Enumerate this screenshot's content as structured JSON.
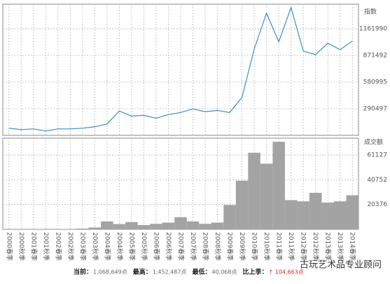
{
  "chart_data": [
    {
      "type": "line",
      "y_label": "指数",
      "categories": [
        "2000春季",
        "2000秋季",
        "2001春季",
        "2001秋季",
        "2002春季",
        "2002秋季",
        "2003春季",
        "2003秋季",
        "2004春季",
        "2004秋季",
        "2005春季",
        "2005秋季",
        "2006春季",
        "2006秋季",
        "2007春季",
        "2007秋季",
        "2008春季",
        "2008秋季",
        "2009春季",
        "2009秋季",
        "2010春季",
        "2010秋季",
        "2011春季",
        "2011秋季",
        "2012春季",
        "2012秋季",
        "2013春季",
        "2013秋季",
        "2014春季"
      ],
      "series": [
        {
          "name": "指数",
          "color": "#3b8ec6",
          "values": [
            77900,
            62300,
            70100,
            46700,
            70100,
            70100,
            77900,
            93500,
            124600,
            264800,
            210300,
            218100,
            186900,
            225900,
            249200,
            288200,
            257000,
            272600,
            249200,
            412800,
            942600,
            1332000,
            1020000,
            1394000,
            919000,
            880000,
            1005000,
            934500,
            1028000
          ]
        }
      ],
      "ylim": [
        0,
        1430000
      ],
      "yticks": [
        {
          "value": 290497,
          "label": "290497"
        },
        {
          "value": 580995,
          "label": "580995"
        },
        {
          "value": 871492,
          "label": "871492"
        },
        {
          "value": 1161990,
          "label": "1161990"
        }
      ],
      "grid": true
    },
    {
      "type": "bar",
      "y_label": "成交额",
      "categories": [
        "2000春季",
        "2000秋季",
        "2001春季",
        "2001秋季",
        "2002春季",
        "2002秋季",
        "2003春季",
        "2003秋季",
        "2004春季",
        "2004秋季",
        "2005春季",
        "2005秋季",
        "2006春季",
        "2006秋季",
        "2007春季",
        "2007秋季",
        "2008春季",
        "2008秋季",
        "2009春季",
        "2009秋季",
        "2010春季",
        "2010秋季",
        "2011春季",
        "2011秋季",
        "2012春季",
        "2012秋季",
        "2013春季",
        "2013秋季",
        "2014春季"
      ],
      "series": [
        {
          "name": "成交额",
          "color": "#a3a3a3",
          "values": [
            300,
            300,
            300,
            300,
            300,
            300,
            600,
            1500,
            6500,
            4300,
            6000,
            3500,
            4500,
            5500,
            10000,
            6500,
            4500,
            5500,
            20000,
            40000,
            63000,
            54000,
            72000,
            24000,
            23000,
            30000,
            22000,
            23000,
            28000
          ]
        }
      ],
      "ylim": [
        0,
        75000
      ],
      "yticks": [
        20376,
        40752,
        61127
      ],
      "grid": true
    }
  ],
  "footer": [
    {
      "label": "当前：",
      "value": "1,068,649点"
    },
    {
      "label": "最高：",
      "value": "1,452,487点"
    },
    {
      "label": "最低：",
      "value": "40,068点"
    },
    {
      "label": "比上季：",
      "value": "↑ 104,663点"
    }
  ],
  "watermark": "古玩艺术品专业顾问"
}
